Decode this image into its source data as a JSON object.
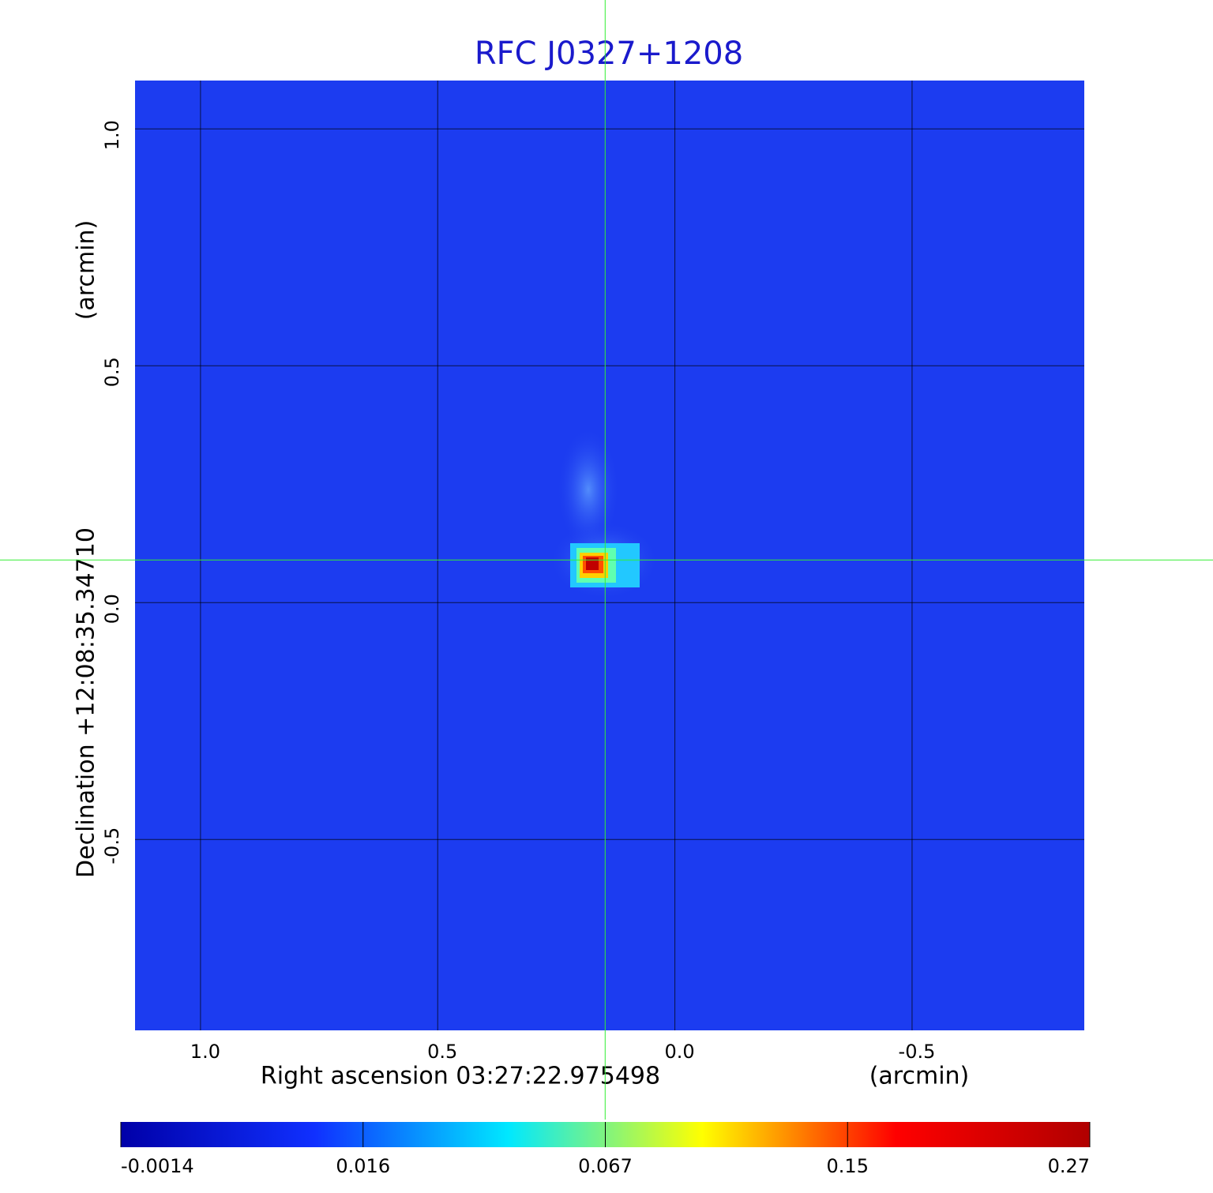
{
  "chart_data": {
    "type": "image",
    "title": "RFC J0327+1208",
    "xlabel": "Right ascension  03:27:22.975498",
    "xunit": "(arcmin)",
    "ylabel": "Declination  +12:08:35.34710",
    "yunit": "(arcmin)",
    "xlim": [
      1.138,
      -0.863
    ],
    "ylim": [
      -0.903,
      1.102
    ],
    "xticks": [
      {
        "value": 1,
        "label": "1.0"
      },
      0.5,
      {
        "value": 0,
        "label": "0.0"
      },
      -0.5
    ],
    "yticks": [
      {
        "value": 1,
        "label": "1.0"
      },
      0.5,
      {
        "value": 0,
        "label": "0.0"
      },
      -0.5
    ],
    "grid": true,
    "crosshair": [
      0.147,
      0.09
    ],
    "crosshair_color": "#33ee33",
    "background_color": "#1c3cf0",
    "colorbar": {
      "ticks": [
        -0.0014,
        0.016,
        0.067,
        0.15,
        0.27
      ],
      "colors": [
        "#0000a8",
        "#1030ff",
        "#00e8ff",
        "#ffff00",
        "#ff0000",
        "#b00000"
      ]
    }
  }
}
